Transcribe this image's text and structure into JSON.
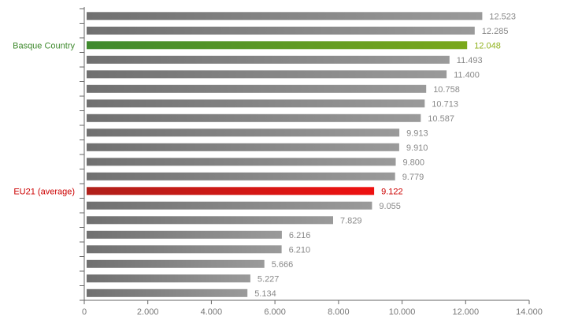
{
  "chart_data": {
    "type": "bar",
    "orientation": "horizontal",
    "values": [
      12523,
      12285,
      12048,
      11493,
      11400,
      10758,
      10713,
      10587,
      9913,
      9910,
      9800,
      9779,
      9122,
      9055,
      7829,
      6216,
      6210,
      5666,
      5227,
      5134
    ],
    "value_labels": [
      "12.523",
      "12.285",
      "12.048",
      "11.493",
      "11.400",
      "10.758",
      "10.713",
      "10.587",
      "9.913",
      "9.910",
      "9.800",
      "9.779",
      "9.122",
      "9.055",
      "7.829",
      "6.216",
      "6.210",
      "5.666",
      "5.227",
      "5.134"
    ],
    "categories": [
      "",
      "",
      "Basque Country",
      "",
      "",
      "",
      "",
      "",
      "",
      "",
      "",
      "",
      "EU21 (average)",
      "",
      "",
      "",
      "",
      "",
      "",
      ""
    ],
    "highlights": [
      {
        "index": 2,
        "label": "Basque Country",
        "color": "#7aa81b",
        "color_dark": "#3f8a2e",
        "text_color": "#3f8a2e",
        "value_color": "#8fb21c"
      },
      {
        "index": 12,
        "label": "EU21 (average)",
        "color": "#ee1111",
        "color_dark": "#b0201a",
        "text_color": "#cc0000",
        "value_color": "#cc0000"
      }
    ],
    "x_ticks": [
      0,
      2000,
      4000,
      6000,
      8000,
      10000,
      12000,
      14000
    ],
    "x_tick_labels": [
      "0",
      "2.000",
      "4.000",
      "6.000",
      "8.000",
      "10.000",
      "12.000",
      "14.000"
    ],
    "xlim": [
      0,
      14000
    ],
    "grid": false,
    "bar_color": "#9a9a9a",
    "bar_color_dark": "#707070"
  }
}
